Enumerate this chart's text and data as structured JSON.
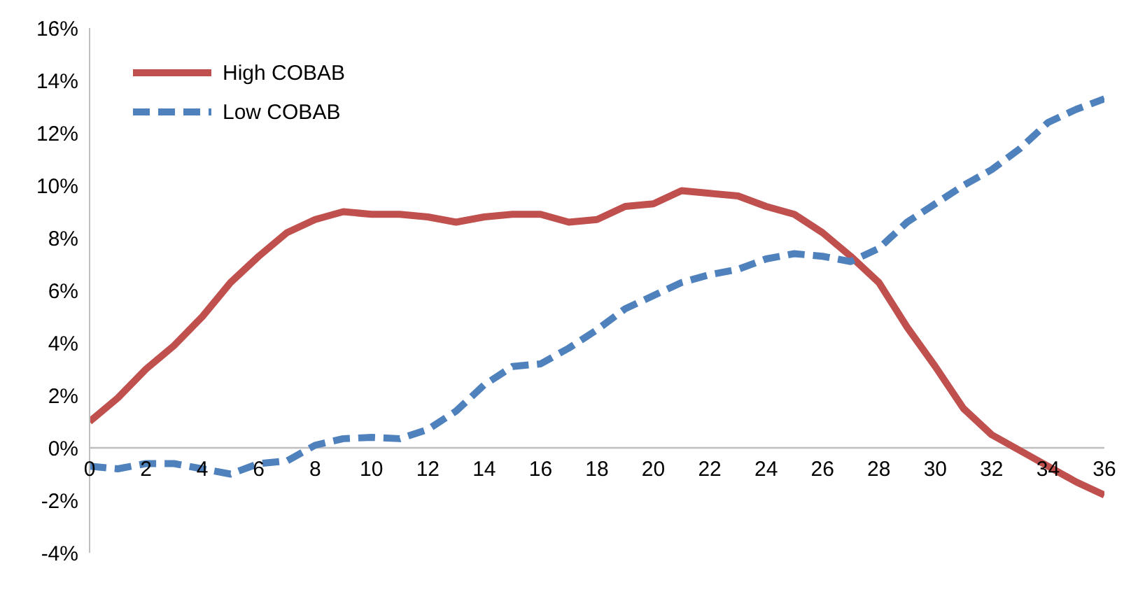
{
  "chart_data": {
    "type": "line",
    "x": [
      0,
      1,
      2,
      3,
      4,
      5,
      6,
      7,
      8,
      9,
      10,
      11,
      12,
      13,
      14,
      15,
      16,
      17,
      18,
      19,
      20,
      21,
      22,
      23,
      24,
      25,
      26,
      27,
      28,
      29,
      30,
      31,
      32,
      33,
      34,
      35,
      36
    ],
    "series": [
      {
        "name": "High COBAB",
        "color": "#c0504d",
        "line_style": "solid",
        "values": [
          1.0,
          1.9,
          3.0,
          3.9,
          5.0,
          6.3,
          7.3,
          8.2,
          8.7,
          9.0,
          8.9,
          8.9,
          8.8,
          8.6,
          8.8,
          8.9,
          8.9,
          8.6,
          8.7,
          9.2,
          9.3,
          9.8,
          9.7,
          9.6,
          9.2,
          8.9,
          8.2,
          7.3,
          6.3,
          4.6,
          3.1,
          1.5,
          0.5,
          -0.1,
          -0.7,
          -1.3,
          -1.8
        ]
      },
      {
        "name": "Low COBAB",
        "color": "#4f81bd",
        "line_style": "dashed",
        "values": [
          -0.7,
          -0.8,
          -0.6,
          -0.6,
          -0.8,
          -1.0,
          -0.6,
          -0.5,
          0.1,
          0.35,
          0.4,
          0.35,
          0.7,
          1.4,
          2.4,
          3.1,
          3.2,
          3.8,
          4.5,
          5.3,
          5.8,
          6.3,
          6.6,
          6.8,
          7.2,
          7.4,
          7.3,
          7.1,
          7.6,
          8.6,
          9.3,
          10.0,
          10.6,
          11.4,
          12.4,
          12.9,
          13.3
        ]
      }
    ],
    "xlim": [
      0,
      36
    ],
    "xticks": [
      0,
      2,
      4,
      6,
      8,
      10,
      12,
      14,
      16,
      18,
      20,
      22,
      24,
      26,
      28,
      30,
      32,
      34,
      36
    ],
    "ylim": [
      -4,
      16
    ],
    "yticks": [
      {
        "value": -4,
        "label": "-4%"
      },
      {
        "value": -2,
        "label": "-2%"
      },
      {
        "value": 0,
        "label": "0%"
      },
      {
        "value": 2,
        "label": "2%"
      },
      {
        "value": 4,
        "label": "4%"
      },
      {
        "value": 6,
        "label": "6%"
      },
      {
        "value": 8,
        "label": "8%"
      },
      {
        "value": 10,
        "label": "10%"
      },
      {
        "value": 12,
        "label": "12%"
      },
      {
        "value": 14,
        "label": "14%"
      },
      {
        "value": 16,
        "label": "16%"
      }
    ],
    "grid": false,
    "legend": "top left",
    "marker": "none"
  }
}
